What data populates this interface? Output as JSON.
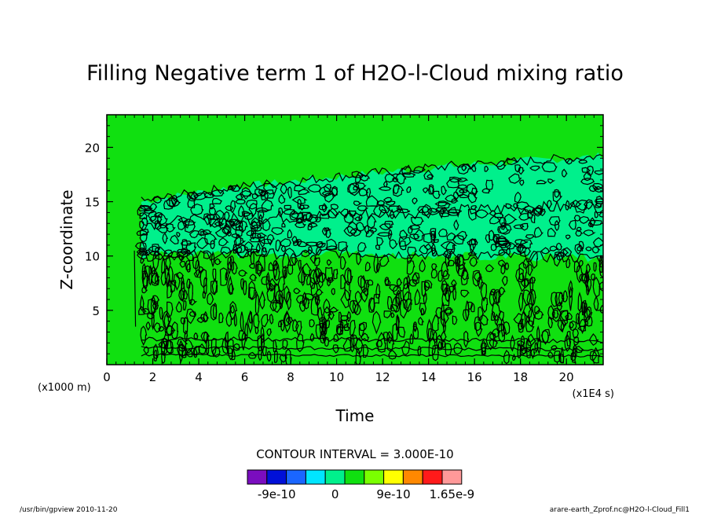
{
  "chart_data": {
    "type": "heatmap",
    "title": "Filling Negative term 1 of H2O-l-Cloud mixing ratio",
    "xlabel": "Time",
    "ylabel": "Z-coordinate",
    "x_unit": "(x1E4 s)",
    "y_unit": "(x1000 m)",
    "xlim": [
      0,
      21.6
    ],
    "ylim": [
      0,
      23
    ],
    "x_ticks": [
      0,
      2,
      4,
      6,
      8,
      10,
      12,
      14,
      16,
      18,
      20
    ],
    "y_ticks": [
      5,
      10,
      15,
      20
    ],
    "contour_interval_label": "CONTOUR INTERVAL = 3.000E-10",
    "colorbar": {
      "colors": [
        "#7a0dbf",
        "#0010d8",
        "#1a66ff",
        "#00e5ff",
        "#00f08c",
        "#10e010",
        "#7aff00",
        "#ffff00",
        "#ff8800",
        "#ff1a1a",
        "#ff9999"
      ],
      "labels": [
        "-9e-10",
        "0",
        "9e-10",
        "1.65e-9"
      ]
    },
    "background_color": "#10e010",
    "cloud_band_color": "#00f08c",
    "cloud_band_top": [
      [
        1.5,
        15.0
      ],
      [
        5,
        16.2
      ],
      [
        10,
        17.3
      ],
      [
        15,
        18.3
      ],
      [
        21.6,
        19.2
      ]
    ],
    "cloud_band_bottom": [
      [
        1.5,
        10.0
      ],
      [
        10,
        10.3
      ],
      [
        21.6,
        9.8
      ]
    ],
    "footer_left": "/usr/bin/gpview  2010-11-20",
    "footer_right": "arare-earth_Zprof.nc@H2O-l-Cloud_Fill1"
  }
}
